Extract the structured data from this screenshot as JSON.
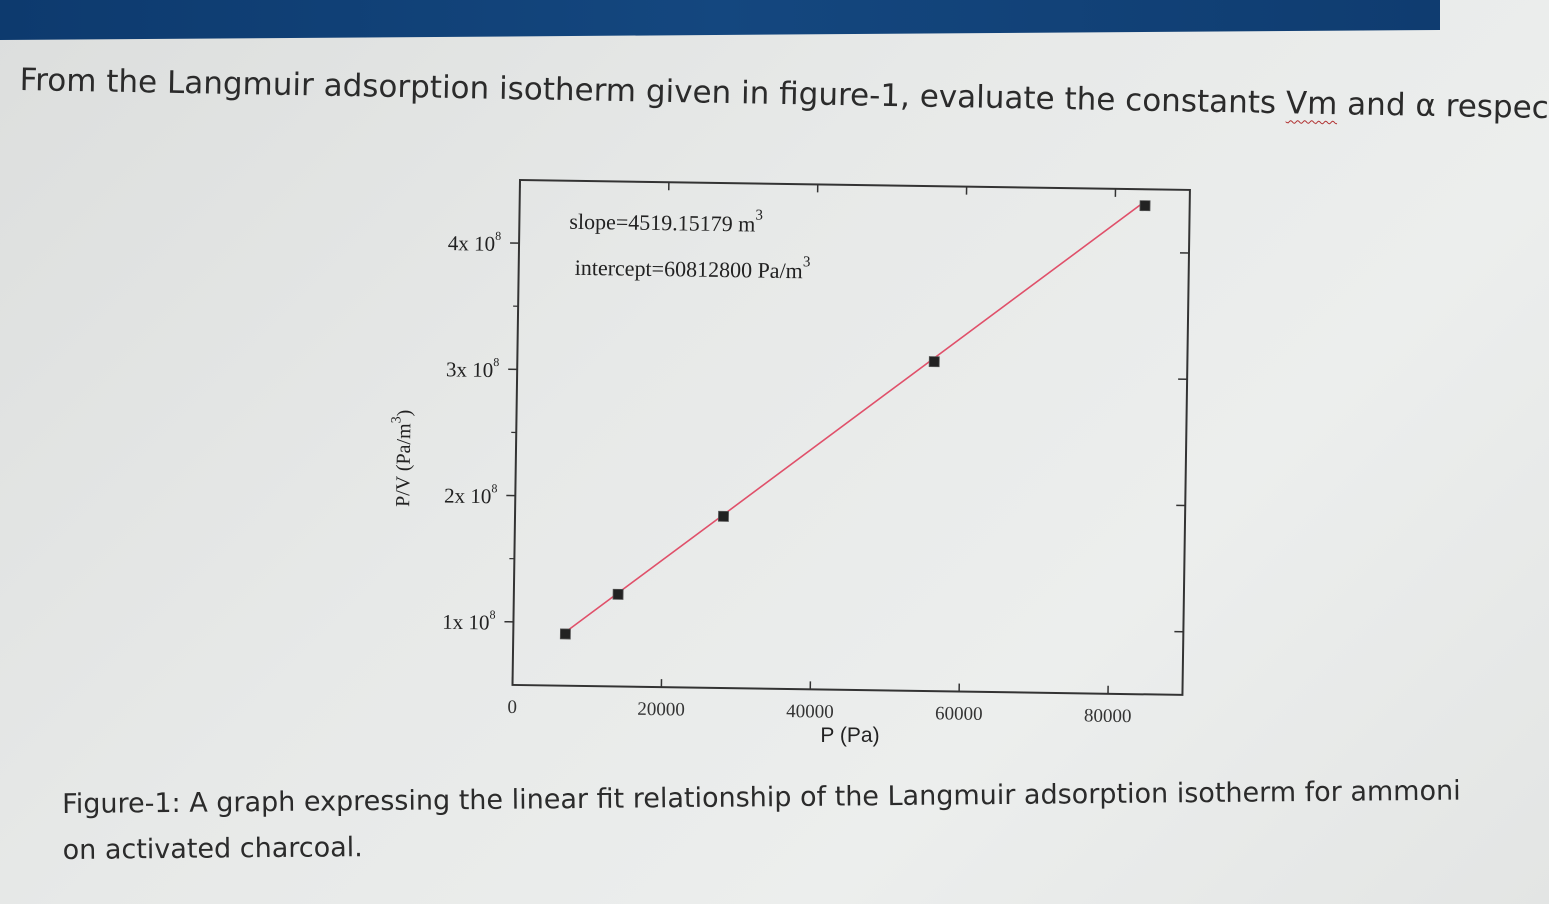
{
  "question": {
    "prefix": "From the Langmuir adsorption isotherm given in figure-1, evaluate the constants ",
    "vm": "Vm",
    "suffix": " and α respec"
  },
  "caption": {
    "line1": "Figure-1: A graph expressing the linear fit relationship of the Langmuir adsorption isotherm for ammoni",
    "line2": "on activated charcoal."
  },
  "colors": {
    "title_bar": "#14477f",
    "fit_line": "#e0506a",
    "marker": "#222222"
  },
  "chart_data": {
    "type": "scatter",
    "title": "",
    "xlabel": "P (Pa)",
    "ylabel": "P/V (Pa/m³)",
    "ylabel_base": "P/V (Pa/m",
    "ylabel_sup": "3",
    "ylabel_close": ")",
    "xlim": [
      0,
      90000
    ],
    "ylim": [
      50000000,
      450000000
    ],
    "x_ticks": [
      0,
      20000,
      40000,
      60000,
      80000
    ],
    "x_tick_labels": [
      "0",
      "20000",
      "40000",
      "60000",
      "80000"
    ],
    "y_ticks": [
      100000000,
      200000000,
      300000000,
      400000000
    ],
    "y_tick_labels": [
      {
        "mantissa": "1x 10",
        "exp": "8"
      },
      {
        "mantissa": "2x 10",
        "exp": "8"
      },
      {
        "mantissa": "3x 10",
        "exp": "8"
      },
      {
        "mantissa": "4x 10",
        "exp": "8"
      }
    ],
    "series": [
      {
        "x": [
          7000,
          14000,
          28000,
          56000,
          84000
        ],
        "y": [
          91000000,
          123000000,
          186000000,
          311000000,
          437000000
        ]
      }
    ],
    "fit": {
      "slope": 4519.15179,
      "intercept": 60812800,
      "x_range": [
        7000,
        84000
      ]
    },
    "annotations": {
      "slope_text": "slope=4519.15179 m",
      "slope_sup": "3",
      "intercept_text": "intercept=60812800 Pa/m",
      "intercept_sup": "3"
    },
    "grid": false,
    "legend": "none"
  }
}
